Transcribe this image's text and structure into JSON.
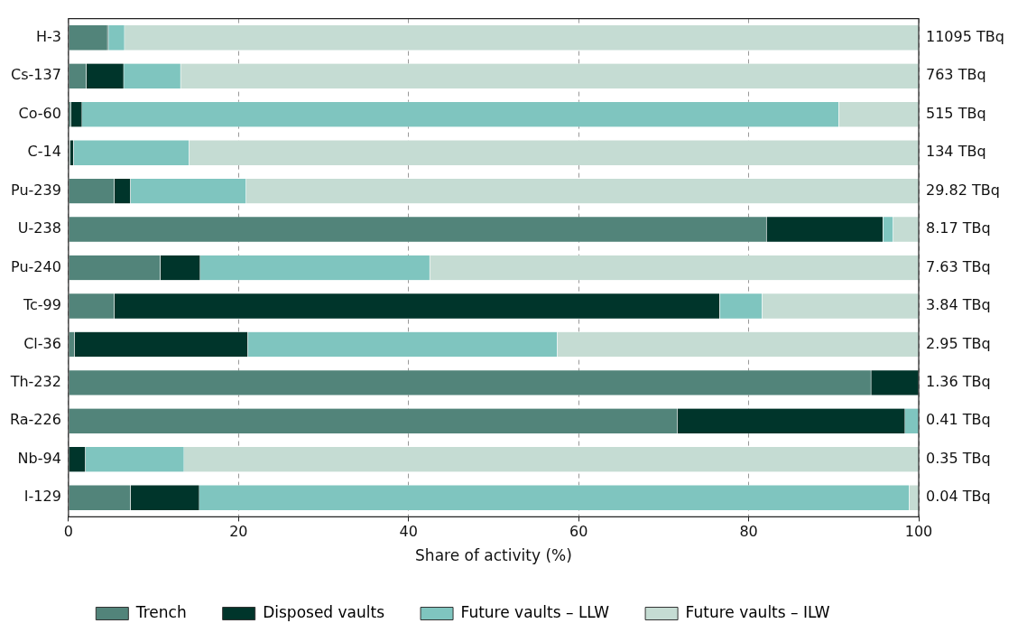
{
  "chart_data": {
    "type": "bar",
    "orientation": "horizontal",
    "stacked": true,
    "xlabel": "Share of activity (%)",
    "categories": [
      "H-3",
      "Cs-137",
      "Co-60",
      "C-14",
      "Pu-239",
      "U-238",
      "Pu-240",
      "Tc-99",
      "Cl-36",
      "Th-232",
      "Ra-226",
      "Nb-94",
      "I-129"
    ],
    "series": [
      {
        "name": "Trench",
        "color": "#52847a",
        "values": [
          4.6,
          2.1,
          0.3,
          0.2,
          5.4,
          82.1,
          10.8,
          5.4,
          0.7,
          94.4,
          71.6,
          0,
          7.3
        ]
      },
      {
        "name": "Disposed vaults",
        "color": "#00352b",
        "values": [
          0.1,
          4.4,
          1.3,
          0.4,
          1.9,
          13.7,
          4.7,
          71.2,
          20.4,
          5.6,
          26.8,
          2.0,
          8.1
        ]
      },
      {
        "name": "Future vaults – LLW",
        "color": "#7fc5bf",
        "values": [
          1.9,
          6.7,
          89.0,
          13.6,
          13.6,
          1.2,
          27.0,
          5.0,
          36.4,
          0,
          1.6,
          11.6,
          83.5
        ]
      },
      {
        "name": "Future vaults – ILW",
        "color": "#c5dcd3",
        "values": [
          93.4,
          86.8,
          9.4,
          85.8,
          79.1,
          3.0,
          57.5,
          18.4,
          42.5,
          0,
          0,
          86.4,
          1.1
        ]
      }
    ],
    "annotations": [
      "11095 TBq",
      "763 TBq",
      "515 TBq",
      "134 TBq",
      "29.82 TBq",
      "8.17 TBq",
      "7.63 TBq",
      "3.84 TBq",
      "2.95 TBq",
      "1.36 TBq",
      "0.41 TBq",
      "0.35 TBq",
      "0.04 TBq"
    ],
    "xlim": [
      0,
      100
    ],
    "xticks": [
      0,
      20,
      40,
      60,
      80,
      100
    ],
    "grid": "x",
    "legend": "bottom"
  }
}
